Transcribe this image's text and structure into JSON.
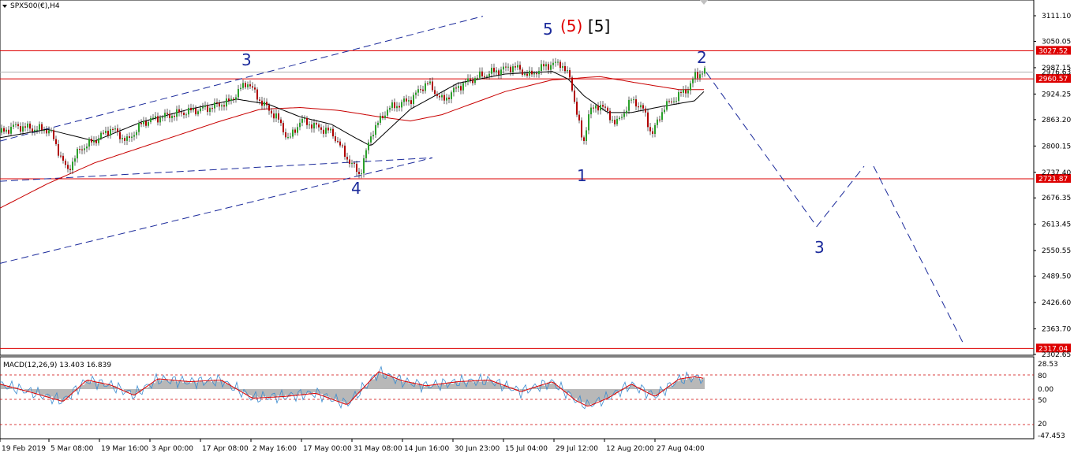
{
  "window": {
    "title": "SPX500(€),H4"
  },
  "colors": {
    "background": "#ffffff",
    "level_line": "#dd0000",
    "level_badge": "#dd0000",
    "wave_label": "#1b2a9b",
    "wave_red": "#e00000",
    "channel": "#1b2a9b",
    "ma_fast": "#000000",
    "ma_slow": "#c80000",
    "candle_up": "#2aa02a",
    "candle_down": "#b00000",
    "macd_hist": "#b8b8b8",
    "macd_signal": "#e00000",
    "macd_line": "#3a8bd0"
  },
  "price_scale": {
    "ticks": [
      "3111.10",
      "3050.05",
      "2987.15",
      "2924.25",
      "2863.20",
      "2800.15",
      "2737.40",
      "2676.35",
      "2613.45",
      "2550.55",
      "2489.50",
      "2426.60",
      "2363.70",
      "2302.65"
    ],
    "current_price": "2976.63",
    "ylim": [
      2302.65,
      3130
    ]
  },
  "levels": [
    {
      "value": 3027.52,
      "label": "3027.52"
    },
    {
      "value": 2960.57,
      "label": "2960.57"
    },
    {
      "value": 2721.87,
      "label": "2721.87"
    },
    {
      "value": 2317.04,
      "label": "2317.04"
    }
  ],
  "wave_labels": {
    "top_5": "5",
    "top_paren_5": "(5)",
    "top_bracket_5": "[5]",
    "w3": "3",
    "w4": "4",
    "w1": "1",
    "w2": "2",
    "proj3": "3"
  },
  "time_axis": {
    "labels": [
      "19 Feb 2019",
      "5 Mar 08:00",
      "19 Mar 16:00",
      "3 Apr 00:00",
      "17 Apr 08:00",
      "2 May 16:00",
      "17 May 00:00",
      "31 May 08:00",
      "14 Jun 16:00",
      "30 Jun 23:00",
      "15 Jul 04:00",
      "29 Jul 12:00",
      "12 Aug 20:00",
      "27 Aug 04:00"
    ]
  },
  "macd": {
    "header": "MACD(12,26,9) 13.403 16.839",
    "ticks": [
      "28.53",
      "80",
      "0.00",
      "50",
      "20",
      "-47.453"
    ]
  },
  "series": {
    "price_anchors": [
      [
        0,
        2832
      ],
      [
        18,
        2848
      ],
      [
        40,
        2842
      ],
      [
        62,
        2838
      ],
      [
        84,
        2740
      ],
      [
        100,
        2792
      ],
      [
        120,
        2815
      ],
      [
        140,
        2842
      ],
      [
        160,
        2812
      ],
      [
        180,
        2856
      ],
      [
        200,
        2868
      ],
      [
        230,
        2880
      ],
      [
        260,
        2890
      ],
      [
        290,
        2906
      ],
      [
        312,
        2954
      ],
      [
        330,
        2905
      ],
      [
        350,
        2868
      ],
      [
        365,
        2814
      ],
      [
        380,
        2862
      ],
      [
        400,
        2846
      ],
      [
        420,
        2832
      ],
      [
        440,
        2768
      ],
      [
        455,
        2732
      ],
      [
        470,
        2832
      ],
      [
        490,
        2888
      ],
      [
        520,
        2912
      ],
      [
        540,
        2952
      ],
      [
        560,
        2908
      ],
      [
        580,
        2942
      ],
      [
        600,
        2962
      ],
      [
        625,
        2978
      ],
      [
        650,
        2990
      ],
      [
        670,
        2968
      ],
      [
        690,
        2992
      ],
      [
        710,
        2998
      ],
      [
        722,
        2958
      ],
      [
        730,
        2880
      ],
      [
        738,
        2800
      ],
      [
        745,
        2880
      ],
      [
        760,
        2900
      ],
      [
        780,
        2852
      ],
      [
        800,
        2912
      ],
      [
        815,
        2885
      ],
      [
        825,
        2826
      ],
      [
        840,
        2892
      ],
      [
        860,
        2922
      ],
      [
        872,
        2940
      ],
      [
        880,
        2968
      ],
      [
        892,
        2980
      ]
    ],
    "ma_fast_anchors": [
      [
        0,
        2820
      ],
      [
        60,
        2840
      ],
      [
        120,
        2812
      ],
      [
        180,
        2858
      ],
      [
        240,
        2888
      ],
      [
        300,
        2912
      ],
      [
        340,
        2900
      ],
      [
        380,
        2870
      ],
      [
        420,
        2852
      ],
      [
        450,
        2820
      ],
      [
        470,
        2800
      ],
      [
        520,
        2888
      ],
      [
        580,
        2950
      ],
      [
        640,
        2972
      ],
      [
        700,
        2978
      ],
      [
        720,
        2960
      ],
      [
        740,
        2920
      ],
      [
        770,
        2880
      ],
      [
        800,
        2880
      ],
      [
        840,
        2895
      ],
      [
        880,
        2908
      ],
      [
        892,
        2930
      ]
    ],
    "ma_slow_anchors": [
      [
        0,
        2652
      ],
      [
        60,
        2710
      ],
      [
        120,
        2760
      ],
      [
        200,
        2810
      ],
      [
        280,
        2860
      ],
      [
        330,
        2888
      ],
      [
        380,
        2892
      ],
      [
        430,
        2885
      ],
      [
        480,
        2870
      ],
      [
        520,
        2860
      ],
      [
        560,
        2875
      ],
      [
        640,
        2930
      ],
      [
        700,
        2958
      ],
      [
        760,
        2966
      ],
      [
        810,
        2950
      ],
      [
        860,
        2935
      ],
      [
        892,
        2935
      ]
    ],
    "projection_path": [
      [
        2976,
        895
      ],
      [
        2608,
        1035
      ],
      [
        2752,
        1095
      ],
      [
        2324,
        1222
      ]
    ],
    "channel_upper": [
      [
        2812,
        0
      ],
      [
        3110,
        612
      ]
    ],
    "channel_lower": [
      [
        2520,
        0
      ],
      [
        2772,
        548
      ]
    ],
    "channel_mid": [
      [
        2716,
        0
      ],
      [
        2772,
        548
      ]
    ],
    "macd_hist_anchors": [
      [
        0,
        12
      ],
      [
        40,
        -8
      ],
      [
        80,
        -30
      ],
      [
        110,
        22
      ],
      [
        140,
        10
      ],
      [
        170,
        -15
      ],
      [
        200,
        25
      ],
      [
        240,
        18
      ],
      [
        280,
        22
      ],
      [
        320,
        -22
      ],
      [
        360,
        -18
      ],
      [
        400,
        -10
      ],
      [
        440,
        -38
      ],
      [
        480,
        42
      ],
      [
        510,
        20
      ],
      [
        540,
        8
      ],
      [
        580,
        18
      ],
      [
        620,
        22
      ],
      [
        660,
        -6
      ],
      [
        700,
        18
      ],
      [
        730,
        -28
      ],
      [
        745,
        -42
      ],
      [
        770,
        -22
      ],
      [
        800,
        12
      ],
      [
        830,
        -18
      ],
      [
        860,
        24
      ],
      [
        880,
        30
      ],
      [
        892,
        26
      ]
    ]
  }
}
